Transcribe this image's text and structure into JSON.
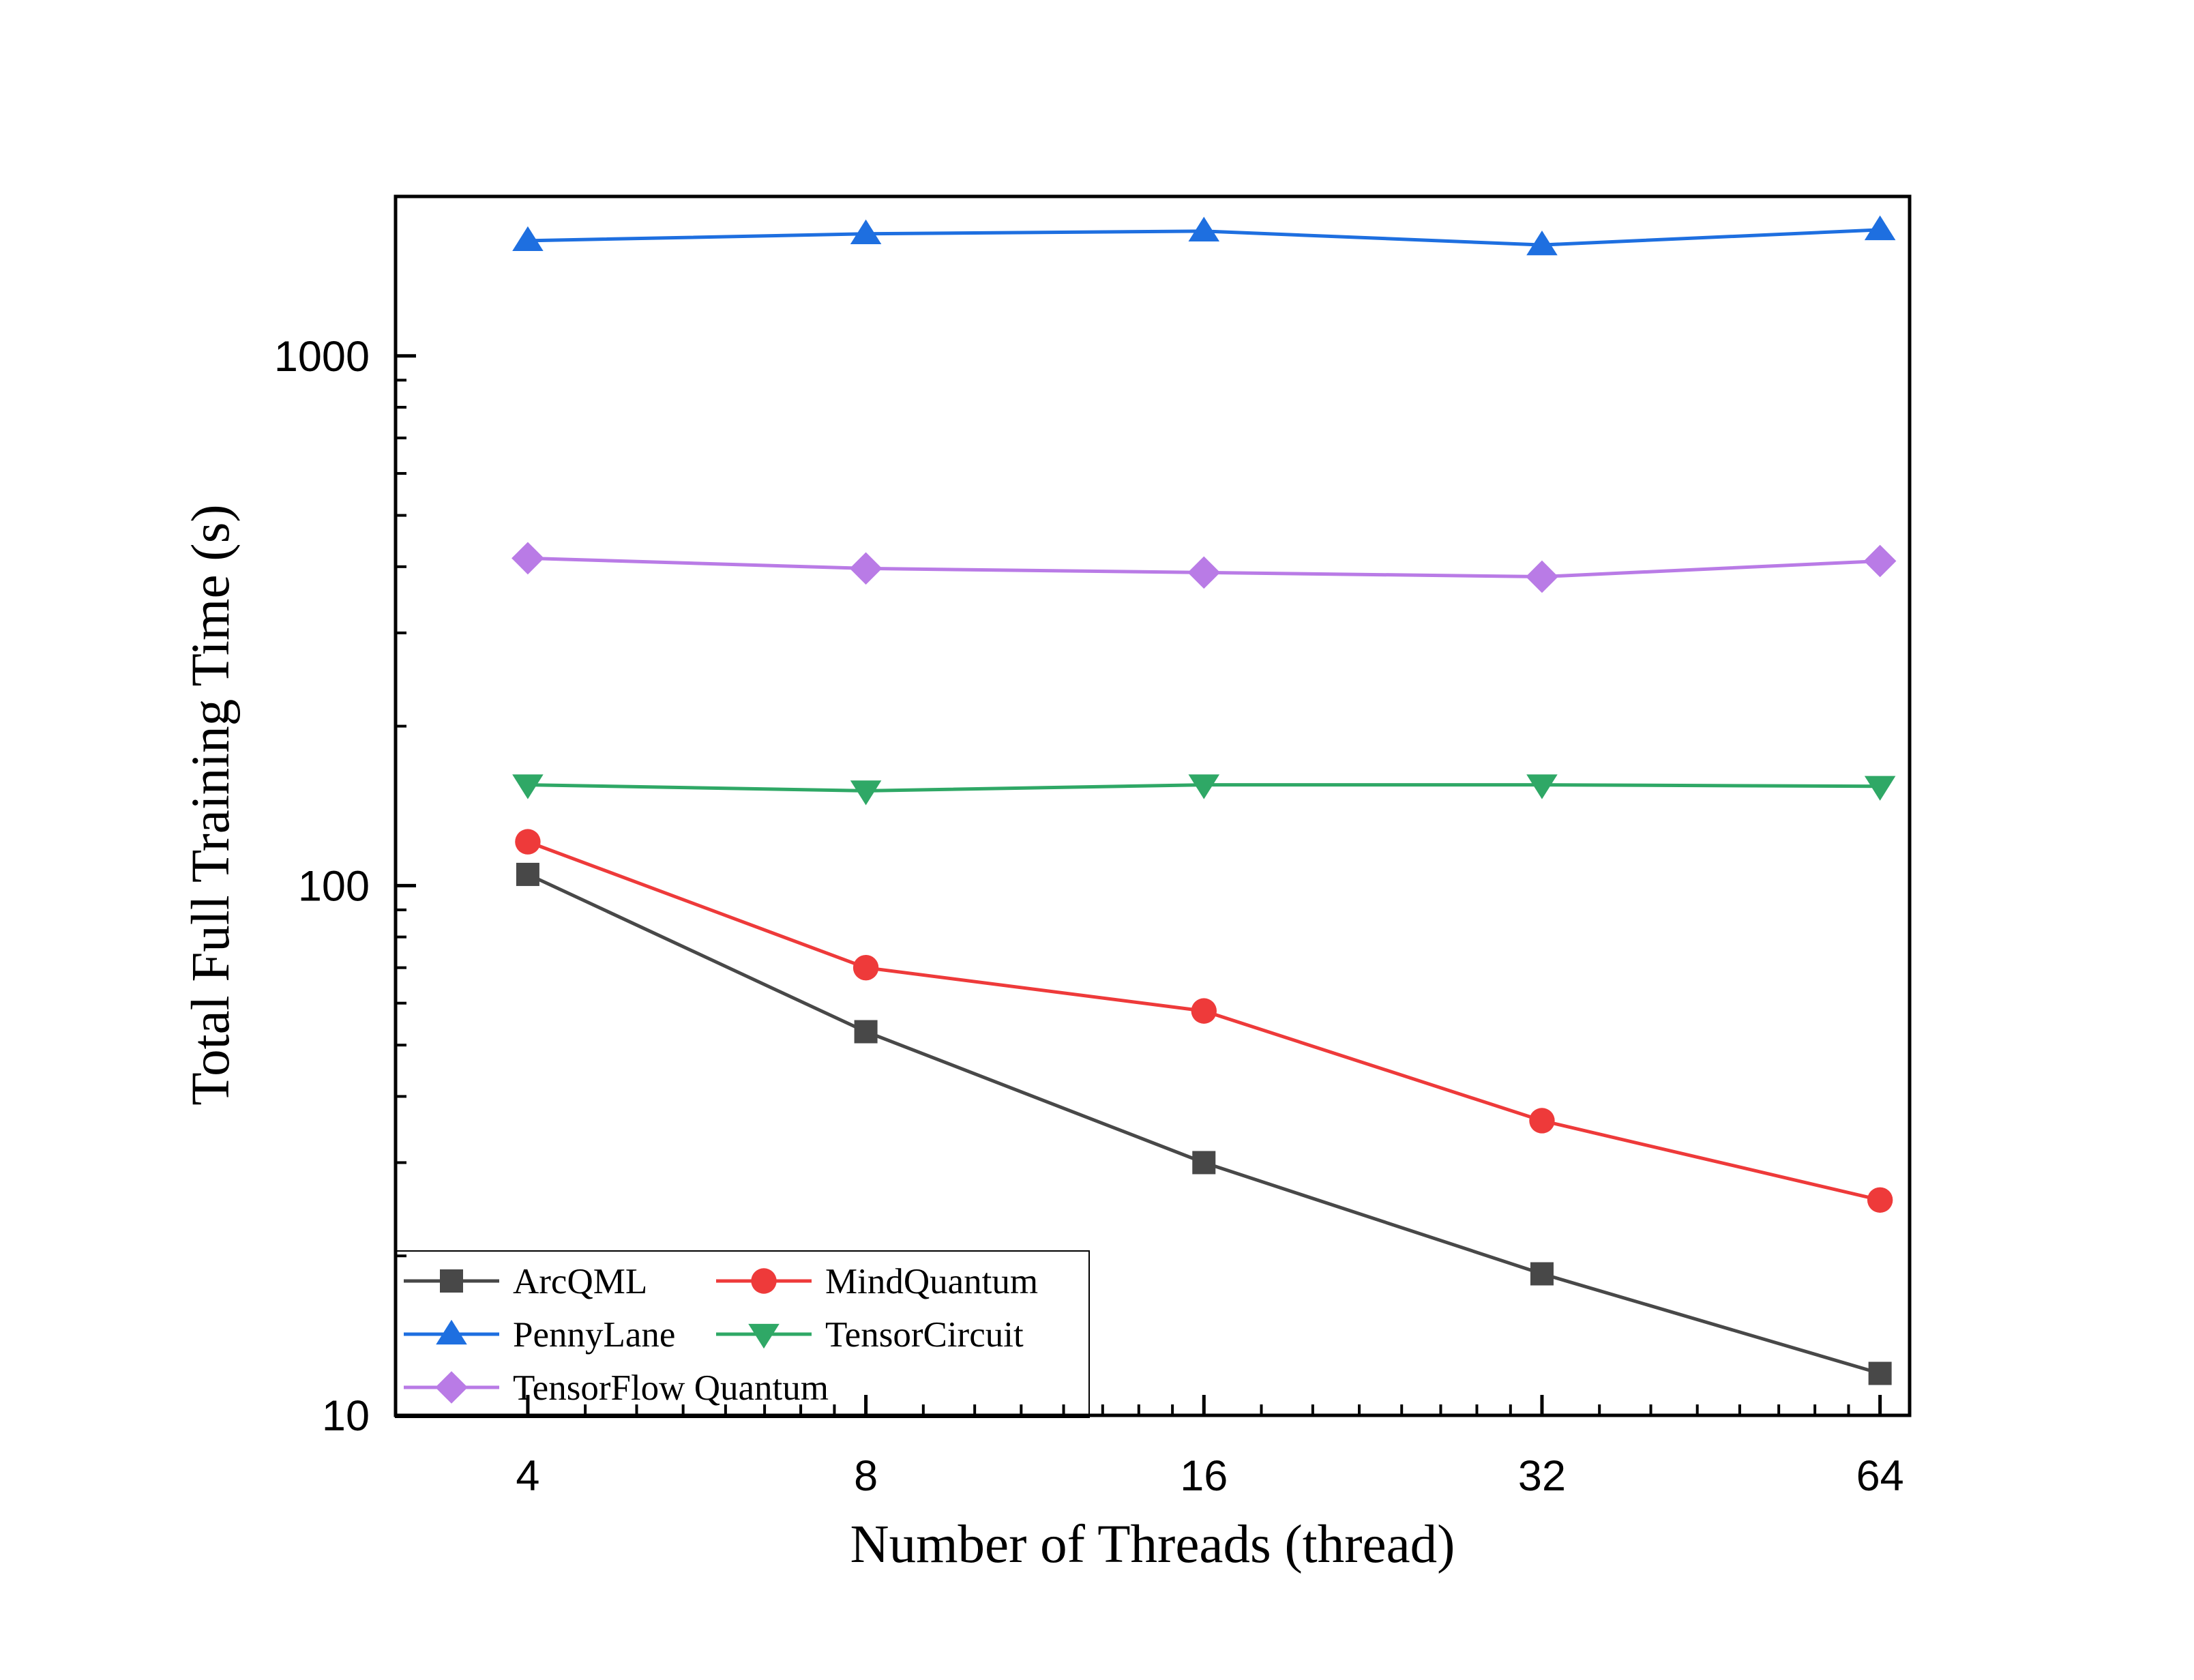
{
  "chart_data": {
    "type": "line",
    "title": "",
    "xlabel": "Number of Threads (thread)",
    "ylabel": "Total Full Training Time (s)",
    "x": [
      4,
      8,
      16,
      32,
      64
    ],
    "x_tick_labels": [
      "4",
      "8",
      "16",
      "32",
      "64"
    ],
    "x_scale": "log2",
    "xlim": [
      3.05,
      68
    ],
    "y_scale": "log",
    "ylim": [
      10,
      2000
    ],
    "y_tick_labels": [
      "10",
      "100",
      "1000"
    ],
    "y_ticks": [
      10,
      100,
      1000
    ],
    "grid": false,
    "legend_position": "bottom-left",
    "series": [
      {
        "name": "ArcQML",
        "values": [
          105,
          53,
          30,
          18.5,
          12
        ],
        "color": "#484848",
        "marker": "square"
      },
      {
        "name": "MindQuantum",
        "values": [
          121,
          70,
          58,
          36,
          25.5
        ],
        "color": "#ee3a3a",
        "marker": "circle"
      },
      {
        "name": "PennyLane",
        "values": [
          1650,
          1700,
          1720,
          1620,
          1730
        ],
        "color": "#1e6fe0",
        "marker": "triangle-up"
      },
      {
        "name": "TensorCircuit",
        "values": [
          155,
          151,
          155,
          155,
          154
        ],
        "color": "#2fa866",
        "marker": "triangle-down"
      },
      {
        "name": "TensorFlow Quantum",
        "values": [
          415,
          397,
          390,
          383,
          410
        ],
        "color": "#b97be6",
        "marker": "diamond"
      }
    ]
  }
}
